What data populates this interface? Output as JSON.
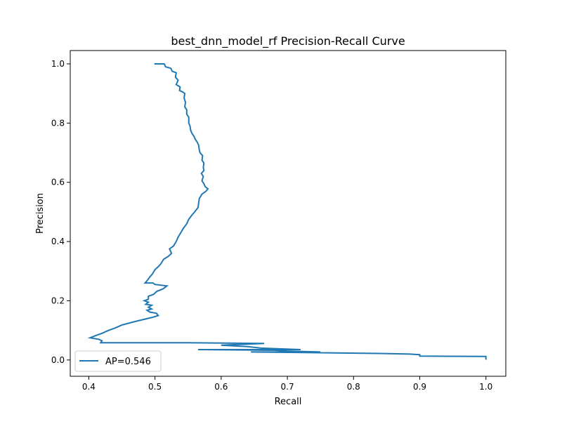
{
  "chart_data": {
    "type": "line",
    "title": "best_dnn_model_rf Precision-Recall Curve",
    "xlabel": "Recall",
    "ylabel": "Precision",
    "xlim": [
      0.372,
      1.03
    ],
    "ylim": [
      -0.055,
      1.045
    ],
    "xticks": [
      0.4,
      0.5,
      0.6,
      0.7,
      0.8,
      0.9,
      1.0
    ],
    "xtick_labels": [
      "0.4",
      "0.5",
      "0.6",
      "0.7",
      "0.8",
      "0.9",
      "1.0"
    ],
    "yticks": [
      0.0,
      0.2,
      0.4,
      0.6,
      0.8,
      1.0
    ],
    "ytick_labels": [
      "0.0",
      "0.2",
      "0.4",
      "0.6",
      "0.8",
      "1.0"
    ],
    "grid": false,
    "legend_position": "lower-left",
    "series": [
      {
        "name": "AP=0.546",
        "color": "#1f77b4",
        "points": [
          [
            0.499,
            1.0
          ],
          [
            0.514,
            1.0
          ],
          [
            0.516,
            0.99
          ],
          [
            0.524,
            0.985
          ],
          [
            0.526,
            0.975
          ],
          [
            0.532,
            0.97
          ],
          [
            0.531,
            0.955
          ],
          [
            0.535,
            0.945
          ],
          [
            0.532,
            0.93
          ],
          [
            0.538,
            0.922
          ],
          [
            0.537,
            0.91
          ],
          [
            0.542,
            0.905
          ],
          [
            0.545,
            0.9
          ],
          [
            0.544,
            0.885
          ],
          [
            0.546,
            0.87
          ],
          [
            0.545,
            0.855
          ],
          [
            0.548,
            0.845
          ],
          [
            0.548,
            0.83
          ],
          [
            0.551,
            0.82
          ],
          [
            0.551,
            0.8
          ],
          [
            0.553,
            0.79
          ],
          [
            0.554,
            0.775
          ],
          [
            0.556,
            0.765
          ],
          [
            0.559,
            0.755
          ],
          [
            0.561,
            0.745
          ],
          [
            0.564,
            0.735
          ],
          [
            0.566,
            0.725
          ],
          [
            0.567,
            0.71
          ],
          [
            0.568,
            0.7
          ],
          [
            0.572,
            0.69
          ],
          [
            0.571,
            0.675
          ],
          [
            0.574,
            0.665
          ],
          [
            0.573,
            0.65
          ],
          [
            0.574,
            0.64
          ],
          [
            0.57,
            0.63
          ],
          [
            0.573,
            0.62
          ],
          [
            0.571,
            0.605
          ],
          [
            0.574,
            0.595
          ],
          [
            0.576,
            0.585
          ],
          [
            0.58,
            0.578
          ],
          [
            0.577,
            0.57
          ],
          [
            0.571,
            0.56
          ],
          [
            0.567,
            0.545
          ],
          [
            0.566,
            0.53
          ],
          [
            0.565,
            0.515
          ],
          [
            0.56,
            0.5
          ],
          [
            0.556,
            0.49
          ],
          [
            0.551,
            0.475
          ],
          [
            0.548,
            0.46
          ],
          [
            0.543,
            0.445
          ],
          [
            0.539,
            0.43
          ],
          [
            0.535,
            0.415
          ],
          [
            0.532,
            0.4
          ],
          [
            0.528,
            0.385
          ],
          [
            0.522,
            0.375
          ],
          [
            0.525,
            0.36
          ],
          [
            0.52,
            0.35
          ],
          [
            0.513,
            0.34
          ],
          [
            0.509,
            0.325
          ],
          [
            0.505,
            0.315
          ],
          [
            0.5,
            0.305
          ],
          [
            0.496,
            0.29
          ],
          [
            0.492,
            0.28
          ],
          [
            0.489,
            0.27
          ],
          [
            0.485,
            0.26
          ],
          [
            0.497,
            0.26
          ],
          [
            0.5,
            0.255
          ],
          [
            0.518,
            0.25
          ],
          [
            0.512,
            0.24
          ],
          [
            0.503,
            0.232
          ],
          [
            0.498,
            0.222
          ],
          [
            0.49,
            0.215
          ],
          [
            0.49,
            0.205
          ],
          [
            0.484,
            0.2
          ],
          [
            0.49,
            0.195
          ],
          [
            0.486,
            0.188
          ],
          [
            0.495,
            0.185
          ],
          [
            0.49,
            0.178
          ],
          [
            0.495,
            0.172
          ],
          [
            0.488,
            0.168
          ],
          [
            0.492,
            0.162
          ],
          [
            0.502,
            0.158
          ],
          [
            0.505,
            0.15
          ],
          [
            0.498,
            0.145
          ],
          [
            0.47,
            0.13
          ],
          [
            0.45,
            0.118
          ],
          [
            0.44,
            0.108
          ],
          [
            0.43,
            0.1
          ],
          [
            0.42,
            0.09
          ],
          [
            0.41,
            0.082
          ],
          [
            0.402,
            0.075
          ],
          [
            0.415,
            0.07
          ],
          [
            0.42,
            0.065
          ],
          [
            0.418,
            0.058
          ],
          [
            0.55,
            0.058
          ],
          [
            0.665,
            0.056
          ],
          [
            0.6,
            0.05
          ],
          [
            0.64,
            0.045
          ],
          [
            0.66,
            0.04
          ],
          [
            0.72,
            0.035
          ],
          [
            0.565,
            0.035
          ],
          [
            0.68,
            0.033
          ],
          [
            0.7,
            0.03
          ],
          [
            0.75,
            0.027
          ],
          [
            0.645,
            0.027
          ],
          [
            0.84,
            0.022
          ],
          [
            0.885,
            0.02
          ],
          [
            0.9,
            0.018
          ],
          [
            0.9,
            0.013
          ],
          [
            0.995,
            0.012
          ],
          [
            1.0,
            0.012
          ],
          [
            1.0,
            0.001
          ]
        ]
      }
    ]
  }
}
